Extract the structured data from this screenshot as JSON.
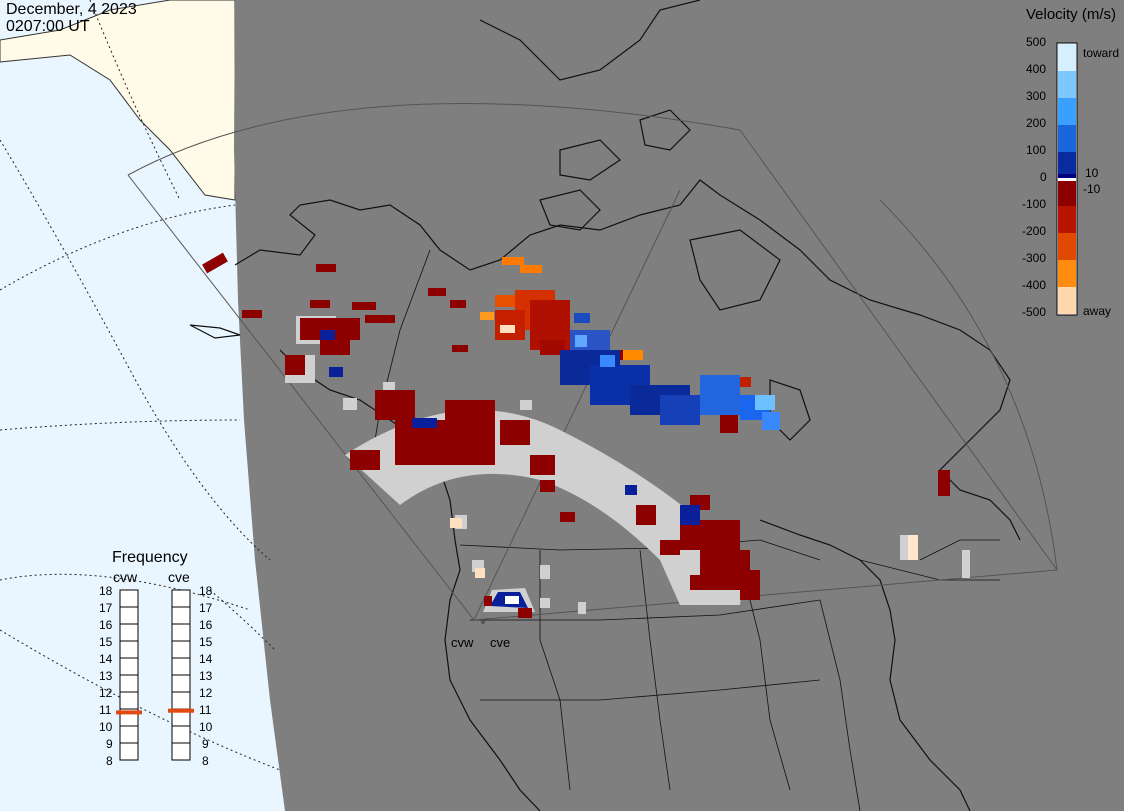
{
  "header": {
    "date": "December, 4 2023",
    "time": "0207:00 UT"
  },
  "velocity_scale": {
    "title": "Velocity (m/s)",
    "left_ticks": [
      "500",
      "400",
      "300",
      "200",
      "100",
      "0",
      "-100",
      "-200",
      "-300",
      "-400",
      "-500"
    ],
    "right_labels": [
      "toward",
      "10",
      "-10",
      "away"
    ]
  },
  "frequency_panel": {
    "title": "Frequency",
    "radars": [
      "cvw",
      "cve"
    ],
    "ticks": [
      "18",
      "17",
      "16",
      "15",
      "14",
      "13",
      "12",
      "11",
      "10",
      "9",
      "8"
    ],
    "selected": {
      "cvw": 10.8,
      "cve": 10.9
    }
  },
  "map": {
    "radar_labels": [
      "cvw",
      "cve"
    ],
    "colors": {
      "ocean": "#eaf6ff",
      "land_outside": "#fffbe8",
      "night": "#7f7f7f",
      "ground_scatter": "#d0d0d0",
      "neg_dark": "#8c0000",
      "pos_dark": "#0a1f9a"
    }
  }
}
